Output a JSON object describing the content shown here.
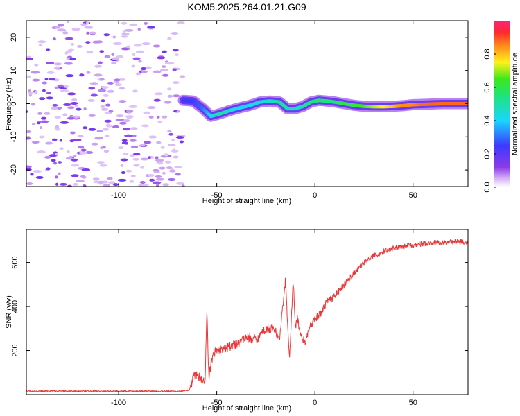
{
  "figure": {
    "title": "KOM5.2025.264.01.21.G09"
  },
  "chart_data": [
    {
      "type": "heatmap",
      "name": "spectrogram",
      "xlabel": "Height of straight line (km)",
      "ylabel": "Frequency (Hz)",
      "xlim": [
        -147,
        78
      ],
      "ylim": [
        -25,
        25
      ],
      "xticks": [
        -100,
        -50,
        0,
        50
      ],
      "xtick_labels": [
        "-100",
        "-50",
        "0",
        "50"
      ],
      "yticks": [
        -20,
        -10,
        0,
        10,
        20
      ],
      "ytick_labels": [
        "-20",
        "-10",
        "0",
        "10",
        "20"
      ],
      "colorbar": {
        "label": "Normalized spectral amplitude",
        "range": [
          0,
          1
        ],
        "ticks": [
          0.0,
          0.2,
          0.4,
          0.6,
          0.8
        ],
        "tick_labels": [
          "0.0",
          "0.2",
          "0.4",
          "0.6",
          "0.8"
        ]
      },
      "ridge": {
        "description_x": [
          -67,
          -62,
          -57,
          -53,
          -48,
          -43,
          -38,
          -33,
          -28,
          -23,
          -18,
          -14,
          -10,
          -6,
          -2,
          2,
          6,
          10,
          15,
          20,
          25,
          30,
          35,
          40,
          45,
          50,
          55,
          60,
          65,
          70,
          78
        ],
        "frequency_hz": [
          1.0,
          0.8,
          -1.5,
          -3.8,
          -3.0,
          -2.0,
          -1.2,
          -0.5,
          0.5,
          0.8,
          0.5,
          -1.5,
          -1.5,
          -0.8,
          0.5,
          1.0,
          0.8,
          0.5,
          0.0,
          -0.5,
          -0.8,
          -0.9,
          -0.9,
          -0.8,
          -0.6,
          -0.3,
          -0.2,
          -0.1,
          0.0,
          0.0,
          0.0
        ],
        "amplitude": [
          0.25,
          0.25,
          0.3,
          0.4,
          0.5,
          0.45,
          0.4,
          0.4,
          0.45,
          0.45,
          0.5,
          0.5,
          0.45,
          0.5,
          0.55,
          0.55,
          0.55,
          0.55,
          0.6,
          0.6,
          0.65,
          0.7,
          0.75,
          0.8,
          0.85,
          0.85,
          0.88,
          0.88,
          0.88,
          0.88,
          0.88
        ]
      }
    },
    {
      "type": "line",
      "name": "snr",
      "xlabel": "Height of straight line (km)",
      "ylabel": "SNR (v/v)",
      "xlim": [
        -147,
        78
      ],
      "ylim": [
        0,
        750
      ],
      "xticks": [
        -100,
        -50,
        0,
        50
      ],
      "xtick_labels": [
        "-100",
        "-50",
        "0",
        "50"
      ],
      "yticks": [
        200,
        400,
        600
      ],
      "ytick_labels": [
        "200",
        "400",
        "600"
      ],
      "series": [
        {
          "name": "SNR",
          "color": "#e8393a",
          "x": [
            -147,
            -140,
            -130,
            -120,
            -110,
            -100,
            -90,
            -80,
            -70,
            -64,
            -62,
            -60,
            -58,
            -56,
            -55,
            -54,
            -52,
            -50,
            -45,
            -40,
            -35,
            -30,
            -25,
            -22,
            -20,
            -18,
            -15,
            -13,
            -11,
            -10,
            -9,
            -7,
            -5,
            -3,
            0,
            3,
            6,
            10,
            15,
            20,
            25,
            30,
            35,
            40,
            45,
            50,
            55,
            60,
            65,
            70,
            78
          ],
          "y": [
            15,
            15,
            16,
            15,
            15,
            15,
            16,
            15,
            15,
            18,
            80,
            90,
            70,
            60,
            370,
            80,
            180,
            200,
            210,
            230,
            260,
            250,
            300,
            300,
            290,
            250,
            520,
            160,
            520,
            300,
            350,
            260,
            240,
            300,
            340,
            370,
            420,
            450,
            500,
            550,
            600,
            630,
            650,
            665,
            675,
            680,
            685,
            690,
            690,
            695,
            695
          ]
        }
      ]
    }
  ]
}
